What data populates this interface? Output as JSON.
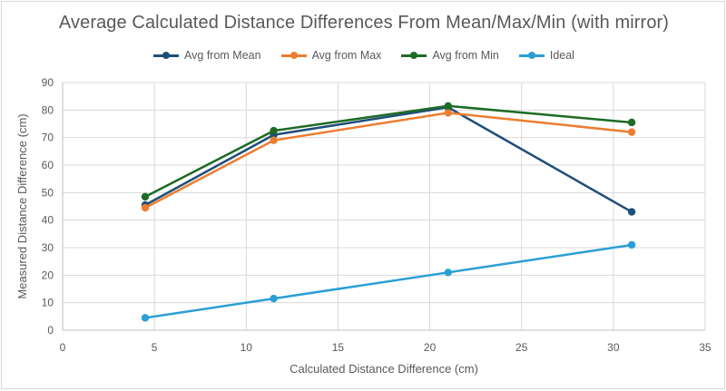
{
  "chart_data": {
    "type": "line",
    "title": "Average Calculated Distance Differences From Mean/Max/Min (with mirror)",
    "xlabel": "Calculated Distance Difference (cm)",
    "ylabel": "Measured Distance Difference (cm)",
    "xlim": [
      0,
      35
    ],
    "ylim": [
      0,
      90
    ],
    "xticks": [
      0,
      5,
      10,
      15,
      20,
      25,
      30,
      35
    ],
    "yticks": [
      0,
      10,
      20,
      30,
      40,
      50,
      60,
      70,
      80,
      90
    ],
    "grid": true,
    "legend_position": "top",
    "series": [
      {
        "name": "Avg from Mean",
        "color": "#1f4e79",
        "x": [
          4.5,
          11.5,
          21,
          31
        ],
        "y": [
          45.5,
          71,
          81,
          43
        ]
      },
      {
        "name": "Avg from Max",
        "color": "#ed7d31",
        "x": [
          4.5,
          11.5,
          21,
          31
        ],
        "y": [
          44.5,
          69,
          79,
          72
        ]
      },
      {
        "name": "Avg from Min",
        "color": "#1e6b25",
        "x": [
          4.5,
          11.5,
          21,
          31
        ],
        "y": [
          48.5,
          72.5,
          81.5,
          75.5
        ]
      },
      {
        "name": "Ideal",
        "color": "#2a9fd6",
        "x": [
          4.5,
          11.5,
          21,
          31
        ],
        "y": [
          4.5,
          11.5,
          21,
          31
        ]
      }
    ]
  }
}
